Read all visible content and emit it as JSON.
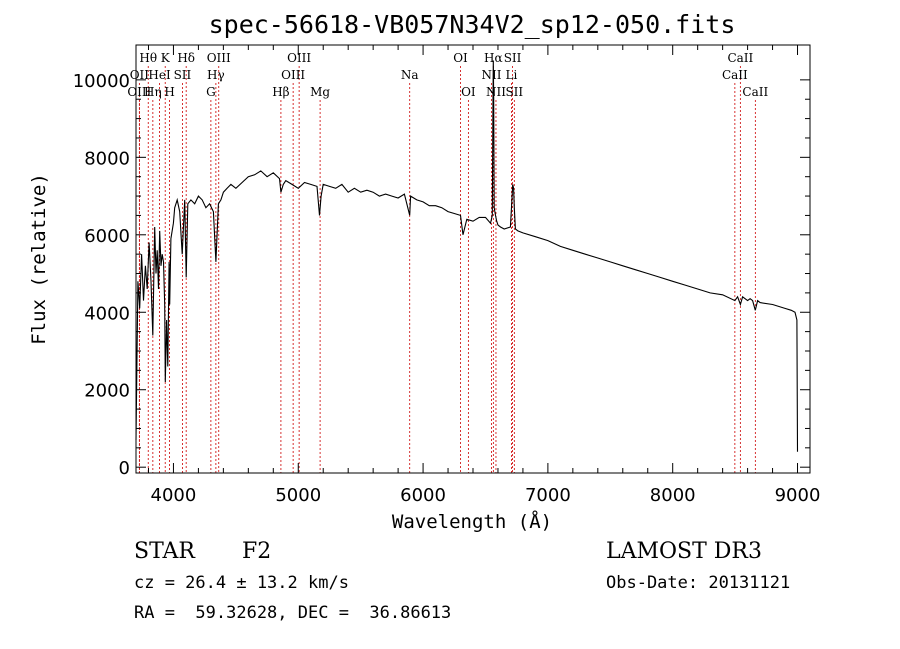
{
  "chart_data": {
    "type": "line",
    "title": "spec-56618-VB057N34V2_sp12-050.fits",
    "xlabel": "Wavelength (Å)",
    "ylabel": "Flux (relative)",
    "xlim": [
      3700,
      9100
    ],
    "ylim": [
      -150,
      10900
    ],
    "xticks": [
      4000,
      5000,
      6000,
      7000,
      8000,
      9000
    ],
    "yticks": [
      0,
      2000,
      4000,
      6000,
      8000,
      10000
    ],
    "grid": false,
    "series": [
      {
        "x": [
          3700,
          3715,
          3730,
          3745,
          3760,
          3775,
          3790,
          3805,
          3820,
          3835,
          3850,
          3860,
          3870,
          3880,
          3890,
          3900,
          3910,
          3920,
          3930,
          3935,
          3945,
          3955,
          3965,
          3970,
          3980,
          4000,
          4010,
          4030,
          4050,
          4070,
          4090,
          4102,
          4115,
          4140,
          4170,
          4200,
          4230,
          4260,
          4290,
          4320,
          4340,
          4360,
          4380,
          4400,
          4430,
          4460,
          4500,
          4550,
          4600,
          4650,
          4700,
          4750,
          4800,
          4850,
          4861,
          4880,
          4900,
          4950,
          5000,
          5050,
          5100,
          5150,
          5170,
          5183,
          5200,
          5250,
          5300,
          5350,
          5400,
          5450,
          5500,
          5550,
          5600,
          5650,
          5700,
          5750,
          5800,
          5850,
          5893,
          5900,
          5950,
          6000,
          6050,
          6100,
          6150,
          6200,
          6250,
          6300,
          6320,
          6350,
          6400,
          6450,
          6500,
          6540,
          6555,
          6560,
          6563,
          6566,
          6570,
          6580,
          6590,
          6600,
          6620,
          6650,
          6700,
          6710,
          6718,
          6725,
          6731,
          6740,
          6760,
          6800,
          6900,
          7000,
          7100,
          7200,
          7300,
          7400,
          7500,
          7600,
          7700,
          7800,
          7900,
          8000,
          8100,
          8200,
          8300,
          8400,
          8498,
          8520,
          8542,
          8560,
          8580,
          8600,
          8620,
          8640,
          8662,
          8680,
          8700,
          8800,
          8900,
          8950,
          8980,
          8995,
          9000
        ],
        "y": [
          700,
          4800,
          4100,
          5500,
          4300,
          5200,
          4600,
          5800,
          4800,
          3400,
          6200,
          5000,
          5600,
          4600,
          6100,
          5200,
          5500,
          5300,
          4200,
          2200,
          3800,
          2600,
          5300,
          4200,
          5900,
          6300,
          6700,
          6900,
          6600,
          5500,
          6900,
          4900,
          6800,
          6900,
          6800,
          7000,
          6900,
          6700,
          6800,
          6600,
          5300,
          6800,
          6900,
          7100,
          7200,
          7300,
          7200,
          7350,
          7500,
          7550,
          7650,
          7500,
          7600,
          7450,
          7100,
          7300,
          7400,
          7300,
          7200,
          7350,
          7300,
          7250,
          6500,
          7000,
          7300,
          7250,
          7200,
          7300,
          7100,
          7200,
          7100,
          7150,
          7100,
          7000,
          7050,
          7000,
          6950,
          7050,
          6500,
          7000,
          6900,
          6850,
          6750,
          6750,
          6700,
          6600,
          6550,
          6500,
          6000,
          6400,
          6350,
          6450,
          6450,
          6300,
          6500,
          9600,
          10500,
          9500,
          6700,
          6500,
          6350,
          6250,
          6200,
          6150,
          6200,
          6800,
          7300,
          7200,
          6700,
          6150,
          6100,
          6050,
          5950,
          5850,
          5700,
          5600,
          5500,
          5400,
          5300,
          5200,
          5100,
          5000,
          4900,
          4800,
          4700,
          4600,
          4500,
          4450,
          4300,
          4400,
          4200,
          4400,
          4350,
          4300,
          4350,
          4300,
          4050,
          4300,
          4250,
          4200,
          4100,
          4050,
          4000,
          3800,
          400
        ]
      }
    ],
    "line_markers": [
      {
        "name": "Hθ",
        "x": 3798,
        "row": 1
      },
      {
        "name": "OII",
        "x": 3727,
        "row": 2
      },
      {
        "name": "OIII",
        "x": 3727,
        "row": 3
      },
      {
        "name": "Hη",
        "x": 3835,
        "row": 3
      },
      {
        "name": "HeI",
        "x": 3889,
        "row": 2
      },
      {
        "name": "K",
        "x": 3934,
        "row": 1
      },
      {
        "name": "H",
        "x": 3969,
        "row": 3
      },
      {
        "name": "SII",
        "x": 4072,
        "row": 2
      },
      {
        "name": "Hδ",
        "x": 4102,
        "row": 1
      },
      {
        "name": "G",
        "x": 4300,
        "row": 3
      },
      {
        "name": "OIII",
        "x": 4363,
        "row": 1
      },
      {
        "name": "Hγ",
        "x": 4340,
        "row": 2
      },
      {
        "name": "Hβ",
        "x": 4861,
        "row": 3
      },
      {
        "name": "OIII",
        "x": 5007,
        "row": 1
      },
      {
        "name": "OIII",
        "x": 4959,
        "row": 2
      },
      {
        "name": "Mg",
        "x": 5175,
        "row": 3
      },
      {
        "name": "Na",
        "x": 5893,
        "row": 2
      },
      {
        "name": "OI",
        "x": 6300,
        "row": 1
      },
      {
        "name": "OI",
        "x": 6363,
        "row": 3
      },
      {
        "name": "Hα",
        "x": 6563,
        "row": 1
      },
      {
        "name": "NII",
        "x": 6548,
        "row": 2
      },
      {
        "name": "NII",
        "x": 6584,
        "row": 3
      },
      {
        "name": "SII",
        "x": 6717,
        "row": 1
      },
      {
        "name": "Li",
        "x": 6708,
        "row": 2
      },
      {
        "name": "SII",
        "x": 6731,
        "row": 3
      },
      {
        "name": "CaII",
        "x": 8542,
        "row": 1
      },
      {
        "name": "CaII",
        "x": 8498,
        "row": 2
      },
      {
        "name": "CaII",
        "x": 8662,
        "row": 3
      }
    ],
    "colors": {
      "spectrum": "#000000",
      "marker": "#cc0000",
      "frame": "#000000"
    }
  },
  "info": {
    "object_class": "STAR",
    "subclass": "F2",
    "survey": "LAMOST DR3",
    "cz": "cz = 26.4 ± 13.2 km/s",
    "obs_date": "Obs-Date: 20131121",
    "radec": "RA =  59.32628, DEC =  36.86613"
  }
}
